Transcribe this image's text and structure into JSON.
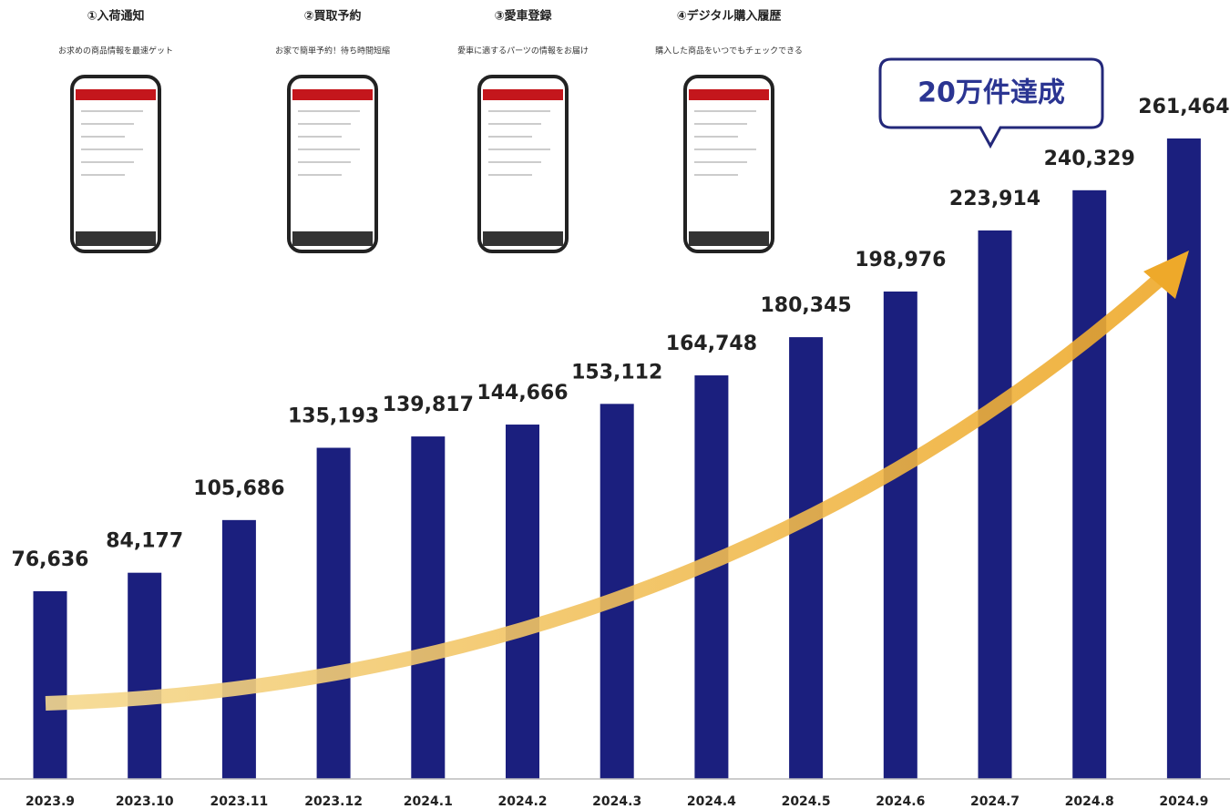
{
  "chart_data": {
    "type": "bar",
    "categories": [
      "2023.9",
      "2023.10",
      "2023.11",
      "2023.12",
      "2024.1",
      "2024.2",
      "2024.3",
      "2024.4",
      "2024.5",
      "2024.6",
      "2024.7",
      "2024.8",
      "2024.9"
    ],
    "values": [
      76636,
      84177,
      105686,
      135193,
      139817,
      144666,
      153112,
      164748,
      180345,
      198976,
      223914,
      240329,
      261464
    ],
    "value_labels": [
      "76,636",
      "84,177",
      "105,686",
      "135,193",
      "139,817",
      "144,666",
      "153,112",
      "164,748",
      "180,345",
      "198,976",
      "223,914",
      "240,329",
      "261,464"
    ],
    "color": "#1b1f7e",
    "annotation": "20万件達成"
  },
  "features": [
    {
      "title": "①入荷通知",
      "description": "お求めの商品情報を最速ゲット"
    },
    {
      "title": "②買取予約",
      "description": "お家で簡単予約！待ち時間短縮"
    },
    {
      "title": "③愛車登録",
      "description": "愛車に適するパーツの情報をお届け"
    },
    {
      "title": "④デジタル購入履歴",
      "description": "購入した商品をいつでもチェックできる"
    }
  ]
}
